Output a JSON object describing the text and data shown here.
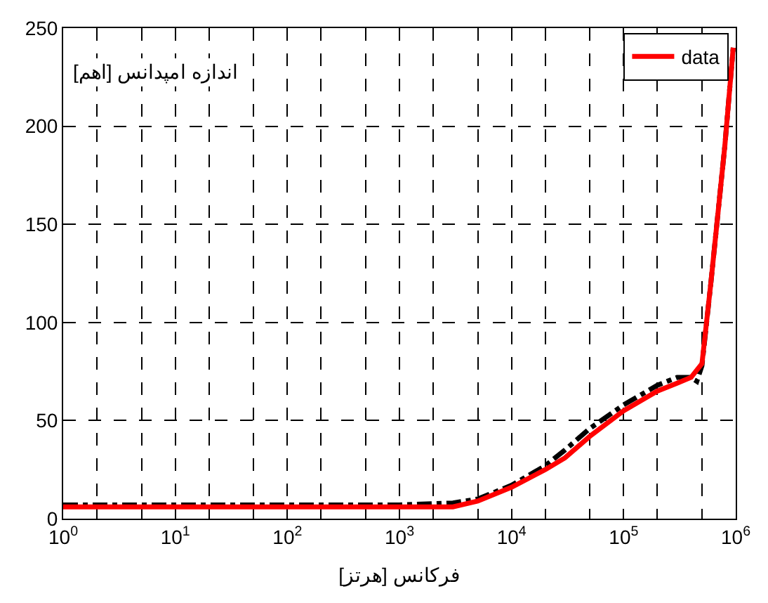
{
  "chart_data": {
    "type": "line",
    "xlabel": "فرکانس [هرتز]",
    "ylabel": "اندازه امپدانس [اهم]",
    "log": "x",
    "grid": true,
    "legend": "top right",
    "line_style": "solid",
    "xlim": [
      1,
      1000000
    ],
    "ylim": [
      0,
      250
    ],
    "xticks": [
      {
        "value": 1,
        "label": "10$^{0}$"
      },
      {
        "value": 10,
        "label": "10$^{1}$"
      },
      {
        "value": 100,
        "label": "10$^{2}$"
      },
      {
        "value": 1000,
        "label": "10$^{3}$"
      },
      {
        "value": 10000,
        "label": "10$^{4}$"
      },
      {
        "value": 100000,
        "label": "10$^{5}$"
      },
      {
        "value": 1000000,
        "label": "10$^{6}$"
      }
    ],
    "yticks": [
      0,
      50,
      100,
      150,
      200,
      250
    ],
    "series": [
      {
        "color": "#000000",
        "line_style": "dashdot",
        "x": [
          1,
          10,
          100,
          1000,
          3000,
          5000,
          10000,
          20000,
          30000,
          50000,
          100000,
          200000,
          300000,
          400000,
          450000,
          500000,
          600000,
          800000,
          950000
        ],
        "values": [
          7,
          7,
          7,
          7,
          8,
          10,
          17,
          27,
          35,
          46,
          58,
          68,
          72,
          72,
          70,
          78,
          120,
          190,
          240
        ]
      },
      {
        "name": "data",
        "color": "#ff0000",
        "x": [
          1,
          10,
          100,
          1000,
          3000,
          5000,
          10000,
          20000,
          30000,
          50000,
          100000,
          200000,
          300000,
          400000,
          500000,
          600000,
          800000,
          950000
        ],
        "values": [
          6,
          6,
          6,
          6,
          6,
          9,
          16,
          25,
          31,
          42,
          55,
          65,
          69,
          72,
          79,
          120,
          190,
          240
        ]
      }
    ]
  }
}
